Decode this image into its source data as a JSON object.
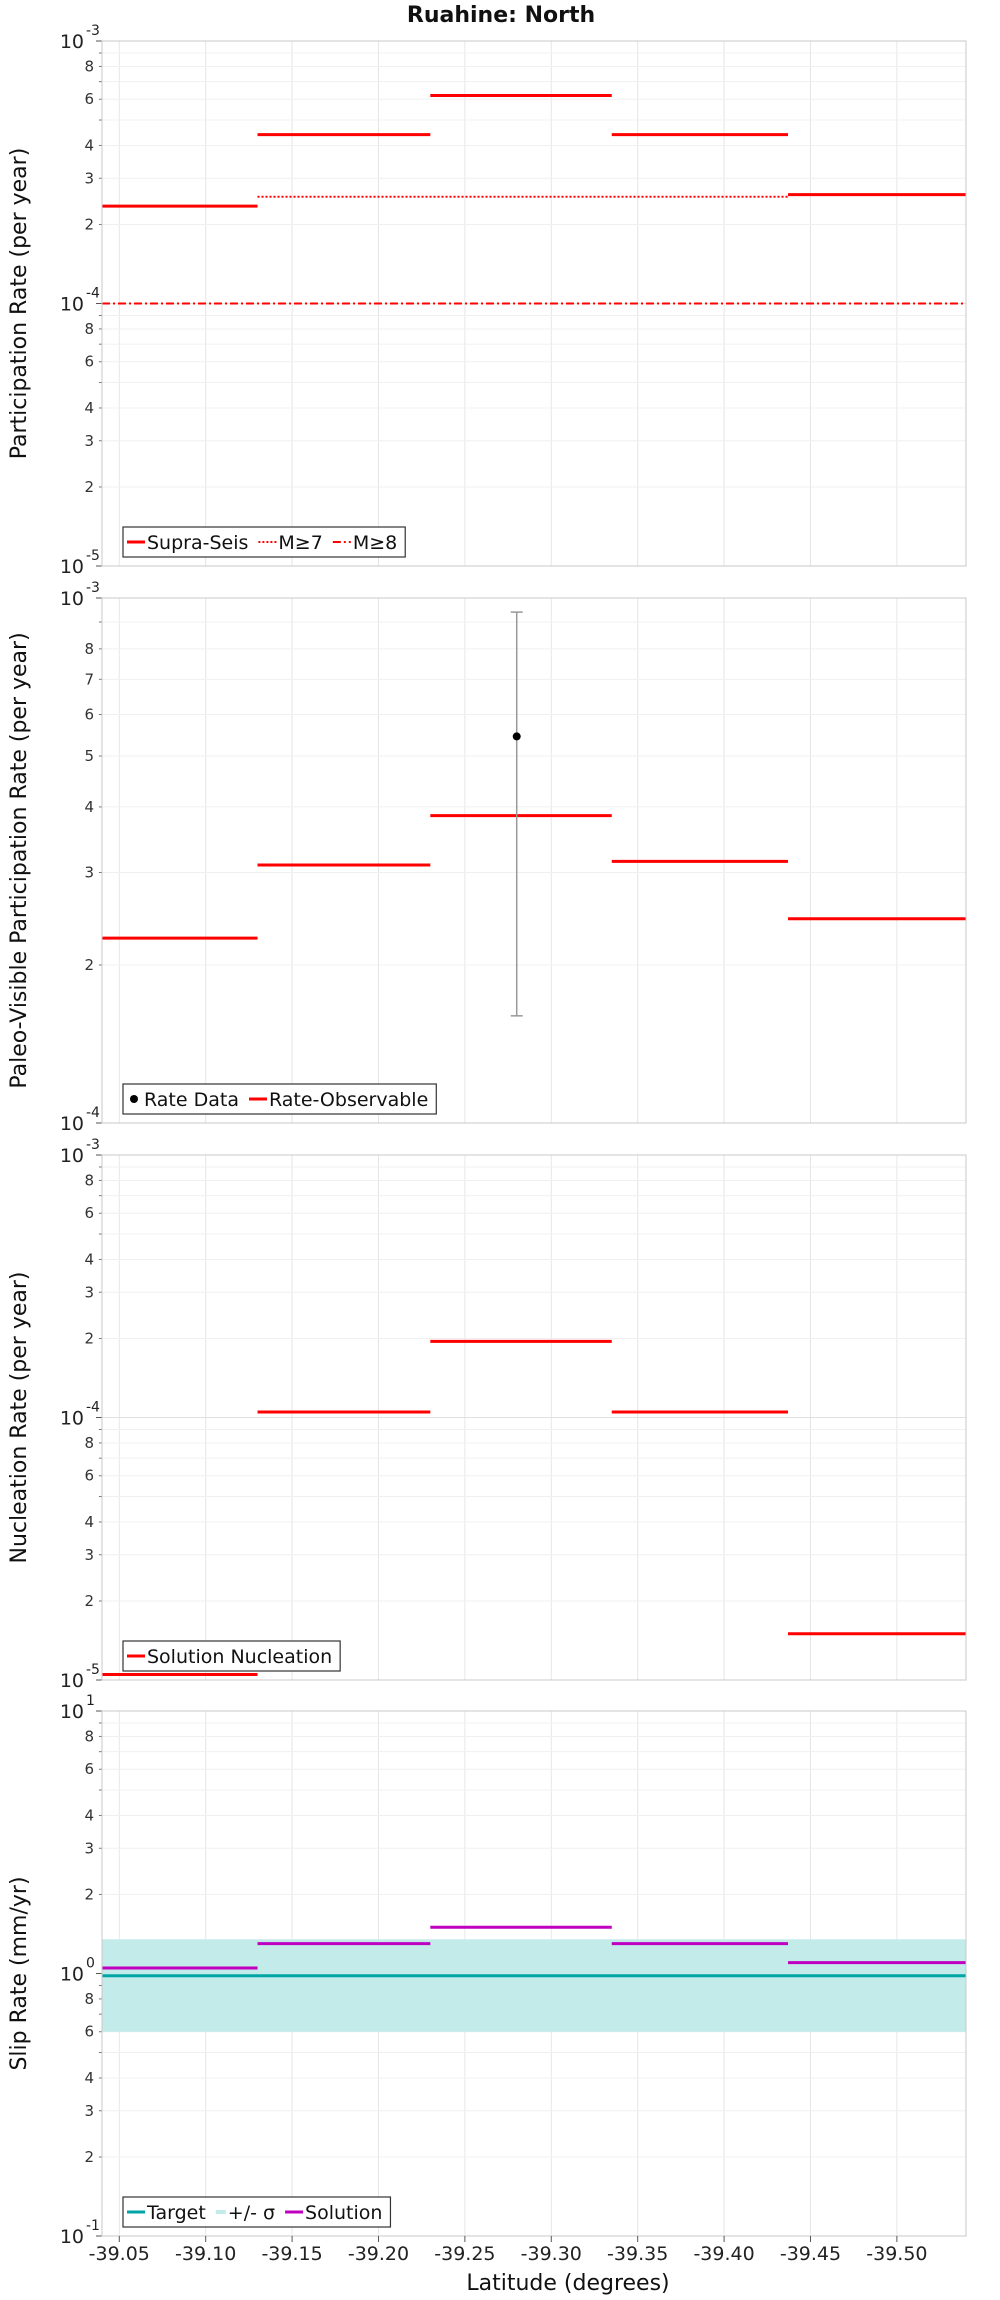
{
  "title": "Ruahine: North",
  "xlabel": "Latitude (degrees)",
  "x_ticks": [
    "-39.05",
    "-39.10",
    "-39.15",
    "-39.20",
    "-39.25",
    "-39.30",
    "-39.35",
    "-39.40",
    "-39.45",
    "-39.50"
  ],
  "chart_data": [
    {
      "type": "line",
      "ylabel": "Participation Rate (per year)",
      "yscale": "log",
      "xlim": [
        -39.04,
        -39.54
      ],
      "ylim": [
        1e-05,
        0.001
      ],
      "ytick_labels": {
        "major": [
          {
            "base": "10",
            "exp": "-5"
          },
          {
            "base": "10",
            "exp": "-4"
          },
          {
            "base": "10",
            "exp": "-3"
          }
        ],
        "minor": [
          "2",
          "3",
          "4",
          "6",
          "8"
        ]
      },
      "series": [
        {
          "name": "Supra-Seis",
          "style": "solid",
          "color": "#ff0000",
          "segments": [
            {
              "x": [
                -39.04,
                -39.13
              ],
              "y": 0.000235
            },
            {
              "x": [
                -39.13,
                -39.23
              ],
              "y": 0.00044
            },
            {
              "x": [
                -39.23,
                -39.335
              ],
              "y": 0.00062
            },
            {
              "x": [
                -39.335,
                -39.437
              ],
              "y": 0.00044
            },
            {
              "x": [
                -39.437,
                -39.54
              ],
              "y": 0.00026
            }
          ]
        },
        {
          "name": "M≥7",
          "style": "dotted",
          "color": "#ff0000",
          "segments": [
            {
              "x": [
                -39.13,
                -39.437
              ],
              "y": 0.000255
            }
          ]
        },
        {
          "name": "M≥8",
          "style": "dashdot",
          "color": "#ff0000",
          "segments": [
            {
              "x": [
                -39.04,
                -39.54
              ],
              "y": 0.0001
            }
          ]
        }
      ],
      "legend": [
        "Supra-Seis",
        "M≥7",
        "M≥8"
      ],
      "legend_position": "bottom-left",
      "grid": true
    },
    {
      "type": "line",
      "ylabel": "Paleo-Visible Participation Rate (per year)",
      "yscale": "log",
      "xlim": [
        -39.04,
        -39.54
      ],
      "ylim": [
        0.0001,
        0.001
      ],
      "ytick_labels": {
        "major": [
          {
            "base": "10",
            "exp": "-4"
          },
          {
            "base": "10",
            "exp": "-3"
          }
        ],
        "minor": [
          "2",
          "3",
          "4",
          "5",
          "6",
          "7",
          "8"
        ]
      },
      "series": [
        {
          "name": "Rate-Observable",
          "style": "solid",
          "color": "#ff0000",
          "segments": [
            {
              "x": [
                -39.04,
                -39.13
              ],
              "y": 0.000225
            },
            {
              "x": [
                -39.13,
                -39.23
              ],
              "y": 0.00031
            },
            {
              "x": [
                -39.23,
                -39.335
              ],
              "y": 0.000385
            },
            {
              "x": [
                -39.335,
                -39.437
              ],
              "y": 0.000315
            },
            {
              "x": [
                -39.437,
                -39.54
              ],
              "y": 0.000245
            }
          ]
        }
      ],
      "points": [
        {
          "name": "Rate Data",
          "x": -39.28,
          "y": 0.000545,
          "ylow": 0.00016,
          "yhigh": 0.00094,
          "color": "#000000"
        }
      ],
      "legend": [
        "Rate Data",
        "Rate-Observable"
      ],
      "legend_position": "bottom-left",
      "grid": true
    },
    {
      "type": "line",
      "ylabel": "Nucleation Rate (per year)",
      "yscale": "log",
      "xlim": [
        -39.04,
        -39.54
      ],
      "ylim": [
        1e-05,
        0.001
      ],
      "ytick_labels": {
        "major": [
          {
            "base": "10",
            "exp": "-5"
          },
          {
            "base": "10",
            "exp": "-4"
          },
          {
            "base": "10",
            "exp": "-3"
          }
        ],
        "minor": [
          "2",
          "3",
          "4",
          "6",
          "8"
        ]
      },
      "series": [
        {
          "name": "Solution Nucleation",
          "style": "solid",
          "color": "#ff0000",
          "segments": [
            {
              "x": [
                -39.04,
                -39.13
              ],
              "y": 1.05e-05
            },
            {
              "x": [
                -39.13,
                -39.23
              ],
              "y": 0.000105
            },
            {
              "x": [
                -39.23,
                -39.335
              ],
              "y": 0.000195
            },
            {
              "x": [
                -39.335,
                -39.437
              ],
              "y": 0.000105
            },
            {
              "x": [
                -39.437,
                -39.54
              ],
              "y": 1.5e-05
            }
          ]
        }
      ],
      "legend": [
        "Solution Nucleation"
      ],
      "legend_position": "bottom-left",
      "grid": true
    },
    {
      "type": "line",
      "ylabel": "Slip Rate (mm/yr)",
      "yscale": "log",
      "xlim": [
        -39.04,
        -39.54
      ],
      "ylim": [
        0.1,
        10
      ],
      "ytick_labels": {
        "major": [
          {
            "base": "10",
            "exp": "-1"
          },
          {
            "base": "10",
            "exp": "0"
          },
          {
            "base": "10",
            "exp": "1"
          }
        ],
        "minor": [
          "2",
          "3",
          "4",
          "6",
          "8"
        ]
      },
      "band": {
        "name": "+/- σ",
        "y": [
          0.6,
          1.35
        ],
        "color": "#c2ebe9"
      },
      "series": [
        {
          "name": "Target",
          "style": "solid",
          "color": "#00a6a6",
          "segments": [
            {
              "x": [
                -39.04,
                -39.54
              ],
              "y": 0.98
            }
          ]
        },
        {
          "name": "Solution",
          "style": "solid",
          "color": "#c000c0",
          "segments": [
            {
              "x": [
                -39.04,
                -39.13
              ],
              "y": 1.05
            },
            {
              "x": [
                -39.13,
                -39.23
              ],
              "y": 1.3
            },
            {
              "x": [
                -39.23,
                -39.335
              ],
              "y": 1.5
            },
            {
              "x": [
                -39.335,
                -39.437
              ],
              "y": 1.3
            },
            {
              "x": [
                -39.437,
                -39.54
              ],
              "y": 1.1
            }
          ]
        }
      ],
      "legend": [
        "Target",
        "+/- σ",
        "Solution"
      ],
      "legend_position": "bottom-left",
      "grid": true
    }
  ]
}
